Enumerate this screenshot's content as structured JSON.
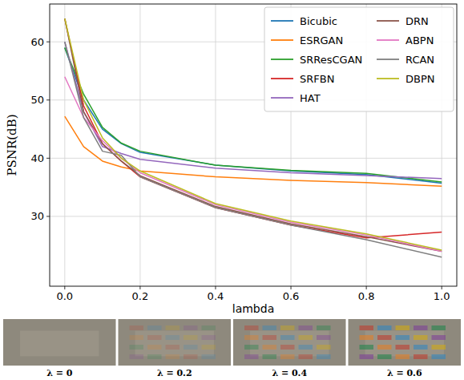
{
  "chart_data": {
    "type": "line",
    "x_label": "lambda",
    "y_label": "PSNR(dB)",
    "x": [
      0,
      0.05,
      0.1,
      0.15,
      0.2,
      0.4,
      0.6,
      0.8,
      1.0
    ],
    "series": [
      {
        "name": "Bicubic",
        "color": "#1f77b4",
        "values": [
          59,
          50,
          45,
          42.5,
          41,
          38.8,
          37.8,
          37.2,
          35.7
        ]
      },
      {
        "name": "ESRGAN",
        "color": "#ff7f0e",
        "values": [
          47.2,
          42,
          39.5,
          38.5,
          37.8,
          36.8,
          36.2,
          35.8,
          35.2
        ]
      },
      {
        "name": "SRResCGAN",
        "color": "#2ca02c",
        "values": [
          59,
          51,
          45.3,
          42.6,
          41.2,
          38.8,
          37.9,
          37.4,
          35.9
        ]
      },
      {
        "name": "SRFBN",
        "color": "#d62728",
        "values": [
          64,
          49,
          42.5,
          39.5,
          36.8,
          31.5,
          28.5,
          26.3,
          27.3
        ]
      },
      {
        "name": "HAT",
        "color": "#9467bd",
        "values": [
          60,
          48,
          42,
          40.8,
          39.8,
          38.3,
          37.5,
          37,
          36.5
        ]
      },
      {
        "name": "DRN",
        "color": "#8c564b",
        "values": [
          64,
          48,
          42.5,
          39.5,
          37,
          31.7,
          28.7,
          26.5,
          24
        ]
      },
      {
        "name": "ABPN",
        "color": "#e377c2",
        "values": [
          54,
          47,
          43,
          40,
          37.5,
          32,
          29,
          26.8,
          24
        ]
      },
      {
        "name": "RCAN",
        "color": "#7f7f7f",
        "values": [
          60,
          47,
          41.2,
          40.5,
          36.8,
          31.5,
          28.5,
          26,
          23
        ]
      },
      {
        "name": "DBPN",
        "color": "#bcbd22",
        "values": [
          64,
          50,
          43.5,
          40,
          37.8,
          32.2,
          29.2,
          27,
          24.2
        ]
      }
    ],
    "xlim": [
      -0.04,
      1.04
    ],
    "ylim": [
      18,
      66.5
    ],
    "xticks": [
      {
        "value": 0,
        "label": "0.0"
      },
      {
        "value": 0.2,
        "label": "0.2"
      },
      {
        "value": 0.4,
        "label": "0.4"
      },
      {
        "value": 0.6,
        "label": "0.6"
      },
      {
        "value": 0.8,
        "label": "0.8"
      },
      {
        "value": 1.0,
        "label": "1.0"
      }
    ],
    "yticks": [
      30,
      40,
      50,
      60
    ],
    "grid": true,
    "legend": "upper right"
  },
  "images": [
    {
      "label": "λ = 0"
    },
    {
      "label": "λ = 0.2"
    },
    {
      "label": "λ = 0.4"
    },
    {
      "label": "λ = 0.6"
    }
  ]
}
